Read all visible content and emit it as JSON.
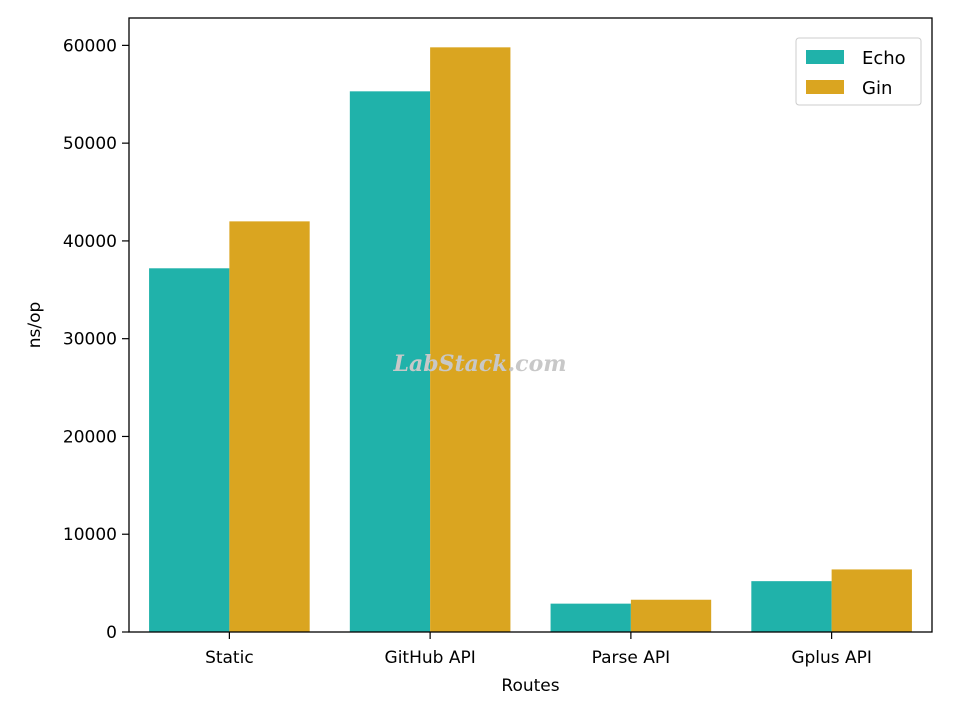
{
  "chart_data": {
    "type": "bar",
    "categories": [
      "Static",
      "GitHub API",
      "Parse API",
      "Gplus API"
    ],
    "series": [
      {
        "name": "Echo",
        "values": [
          37200,
          55300,
          2900,
          5200
        ],
        "color": "#20b2aa"
      },
      {
        "name": "Gin",
        "values": [
          42000,
          59800,
          3300,
          6400
        ],
        "color": "#daa520"
      }
    ],
    "xlabel": "Routes",
    "ylabel": "ns/op",
    "ylim": [
      0,
      62800
    ],
    "yticks": [
      0,
      10000,
      20000,
      30000,
      40000,
      50000,
      60000
    ],
    "ytick_labels": [
      "0",
      "10000",
      "20000",
      "30000",
      "40000",
      "50000",
      "60000"
    ],
    "legend_position": "top-right",
    "grid": false
  },
  "watermark": "LabStack.com"
}
